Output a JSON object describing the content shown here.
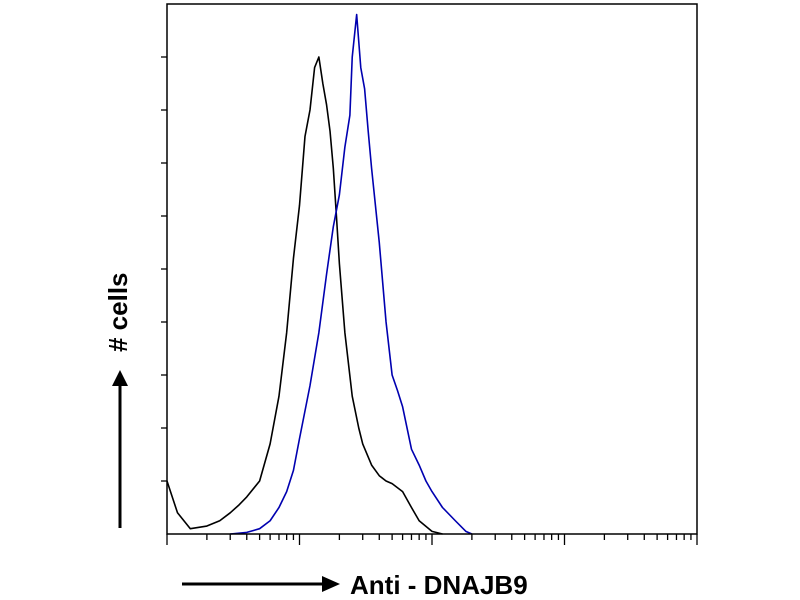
{
  "chart_data": {
    "type": "line",
    "title": "",
    "xlabel": "Anti - DNAJB9",
    "ylabel": "# cells",
    "x_scale": "log",
    "xlim": [
      1,
      10000
    ],
    "ylim": [
      0,
      100
    ],
    "grid": false,
    "legend": "none",
    "series": [
      {
        "color": "#000000",
        "x": [
          1.0,
          1.2,
          1.5,
          2.0,
          2.5,
          3.0,
          3.5,
          4.0,
          5.0,
          6.0,
          7.0,
          8.0,
          9.0,
          10,
          11,
          12,
          13,
          14,
          15,
          16,
          17,
          18,
          19,
          20,
          22,
          25,
          28,
          30,
          35,
          40,
          45,
          50,
          60,
          70,
          80,
          100,
          120
        ],
        "y": [
          10,
          4,
          1,
          1.5,
          2.5,
          4,
          5.5,
          7,
          10,
          17,
          26,
          38,
          52,
          62,
          75,
          80,
          88,
          90,
          85,
          81,
          76,
          69,
          60,
          51,
          38,
          26,
          20,
          17,
          13,
          11,
          10,
          9.5,
          8,
          5,
          2.5,
          0.5,
          0
        ]
      },
      {
        "color": "#0000b0",
        "x": [
          3,
          4,
          5,
          6,
          7,
          8,
          9,
          10,
          12,
          14,
          16,
          18,
          20,
          22,
          24,
          25,
          27,
          29,
          31,
          33,
          35,
          40,
          45,
          50,
          55,
          60,
          70,
          80,
          90,
          100,
          120,
          150,
          180,
          200
        ],
        "y": [
          0,
          0.3,
          1,
          2.5,
          5,
          8,
          12,
          18,
          28,
          38,
          49,
          58,
          64,
          73,
          79,
          90,
          98,
          88,
          84,
          76,
          69,
          55,
          40,
          30,
          27,
          24,
          16,
          13,
          10,
          8,
          5,
          2.5,
          0.5,
          0
        ]
      }
    ]
  }
}
